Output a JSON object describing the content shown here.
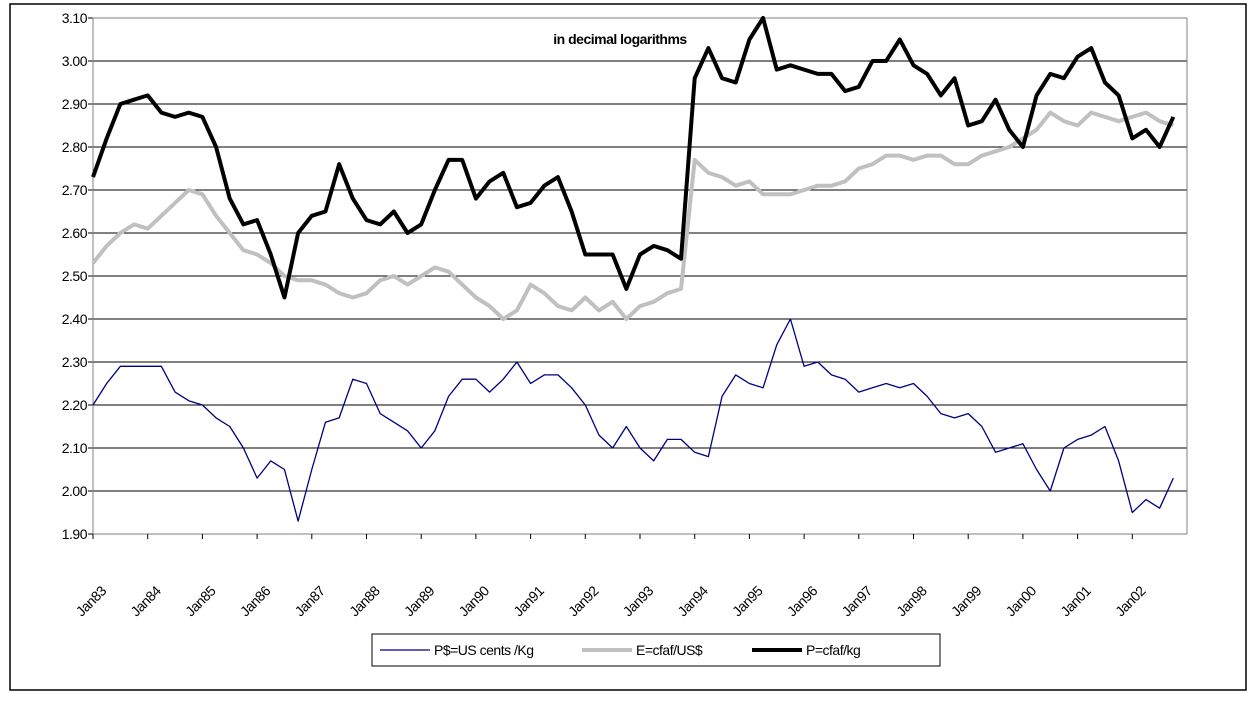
{
  "chart_data": {
    "type": "line",
    "title": "in decimal logarithms",
    "categories": [
      "Jan83",
      null,
      null,
      null,
      "Jan84",
      null,
      null,
      null,
      "Jan85",
      null,
      null,
      null,
      "Jan86",
      null,
      null,
      null,
      "Jan87",
      null,
      null,
      null,
      "Jan88",
      null,
      null,
      null,
      "Jan89",
      null,
      null,
      null,
      "Jan90",
      null,
      null,
      null,
      "Jan91",
      null,
      null,
      null,
      "Jan92",
      null,
      null,
      null,
      "Jan93",
      null,
      null,
      null,
      "Jan94",
      null,
      null,
      null,
      "Jan95",
      null,
      null,
      null,
      "Jan96",
      null,
      null,
      null,
      "Jan97",
      null,
      null,
      null,
      "Jan98",
      null,
      null,
      null,
      "Jan99",
      null,
      null,
      null,
      "Jan00",
      null,
      null,
      null,
      "Jan01",
      null,
      null,
      null,
      "Jan02",
      null,
      null,
      null
    ],
    "series": [
      {
        "name": "P$=US cents /Kg",
        "color": "#000080",
        "width": 1.3,
        "values": [
          2.2,
          2.25,
          2.29,
          2.29,
          2.29,
          2.29,
          2.23,
          2.21,
          2.2,
          2.17,
          2.15,
          2.1,
          2.03,
          2.07,
          2.05,
          1.93,
          2.05,
          2.16,
          2.17,
          2.26,
          2.25,
          2.18,
          2.16,
          2.14,
          2.1,
          2.14,
          2.22,
          2.26,
          2.26,
          2.23,
          2.26,
          2.3,
          2.25,
          2.27,
          2.27,
          2.24,
          2.2,
          2.13,
          2.1,
          2.15,
          2.1,
          2.07,
          2.12,
          2.12,
          2.09,
          2.08,
          2.22,
          2.27,
          2.25,
          2.24,
          2.34,
          2.4,
          2.29,
          2.3,
          2.27,
          2.26,
          2.23,
          2.24,
          2.25,
          2.24,
          2.25,
          2.22,
          2.18,
          2.17,
          2.18,
          2.15,
          2.09,
          2.1,
          2.11,
          2.05,
          2.0,
          2.1,
          2.12,
          2.13,
          2.15,
          2.07,
          1.95,
          1.98,
          1.96,
          2.03
        ]
      },
      {
        "name": "E=cfaf/US$",
        "color": "#c0c0c0",
        "width": 4,
        "values": [
          2.53,
          2.57,
          2.6,
          2.62,
          2.61,
          2.64,
          2.67,
          2.7,
          2.69,
          2.64,
          2.6,
          2.56,
          2.55,
          2.53,
          2.5,
          2.49,
          2.49,
          2.48,
          2.46,
          2.45,
          2.46,
          2.49,
          2.5,
          2.48,
          2.5,
          2.52,
          2.51,
          2.48,
          2.45,
          2.43,
          2.4,
          2.42,
          2.48,
          2.46,
          2.43,
          2.42,
          2.45,
          2.42,
          2.44,
          2.4,
          2.43,
          2.44,
          2.46,
          2.47,
          2.77,
          2.74,
          2.73,
          2.71,
          2.72,
          2.69,
          2.69,
          2.69,
          2.7,
          2.71,
          2.71,
          2.72,
          2.75,
          2.76,
          2.78,
          2.78,
          2.77,
          2.78,
          2.78,
          2.76,
          2.76,
          2.78,
          2.79,
          2.8,
          2.82,
          2.84,
          2.88,
          2.86,
          2.85,
          2.88,
          2.87,
          2.86,
          2.87,
          2.88,
          2.86,
          2.85
        ]
      },
      {
        "name": "P=cfaf/kg",
        "color": "#000000",
        "width": 4,
        "values": [
          2.73,
          2.82,
          2.9,
          2.91,
          2.92,
          2.88,
          2.87,
          2.88,
          2.87,
          2.8,
          2.68,
          2.62,
          2.63,
          2.55,
          2.45,
          2.6,
          2.64,
          2.65,
          2.76,
          2.68,
          2.63,
          2.62,
          2.65,
          2.6,
          2.62,
          2.7,
          2.77,
          2.77,
          2.68,
          2.72,
          2.74,
          2.66,
          2.67,
          2.71,
          2.73,
          2.65,
          2.55,
          2.55,
          2.55,
          2.47,
          2.55,
          2.57,
          2.56,
          2.54,
          2.96,
          3.03,
          2.96,
          2.95,
          3.05,
          3.1,
          2.98,
          2.99,
          2.98,
          2.97,
          2.97,
          2.93,
          2.94,
          3.0,
          3.0,
          3.05,
          2.99,
          2.97,
          2.92,
          2.96,
          2.85,
          2.86,
          2.91,
          2.84,
          2.8,
          2.92,
          2.97,
          2.96,
          3.01,
          3.03,
          2.95,
          2.92,
          2.82,
          2.84,
          2.8,
          2.87
        ]
      }
    ],
    "ylim": [
      1.9,
      3.1
    ],
    "yticks": [
      {
        "value": 1.9,
        "label": "1.90"
      },
      {
        "value": 2.0,
        "label": "2.00"
      },
      {
        "value": 2.1,
        "label": "2.10"
      },
      {
        "value": 2.2,
        "label": "2.20"
      },
      {
        "value": 2.3,
        "label": "2.30"
      },
      {
        "value": 2.4,
        "label": "2.40"
      },
      {
        "value": 2.5,
        "label": "2.50"
      },
      {
        "value": 2.6,
        "label": "2.60"
      },
      {
        "value": 2.7,
        "label": "2.70"
      },
      {
        "value": 2.8,
        "label": "2.80"
      },
      {
        "value": 2.9,
        "label": "2.90"
      },
      {
        "value": 3.0,
        "label": "3.00"
      },
      {
        "value": 3.1,
        "label": "3.10"
      }
    ],
    "grid": true,
    "legend": "bottom"
  }
}
